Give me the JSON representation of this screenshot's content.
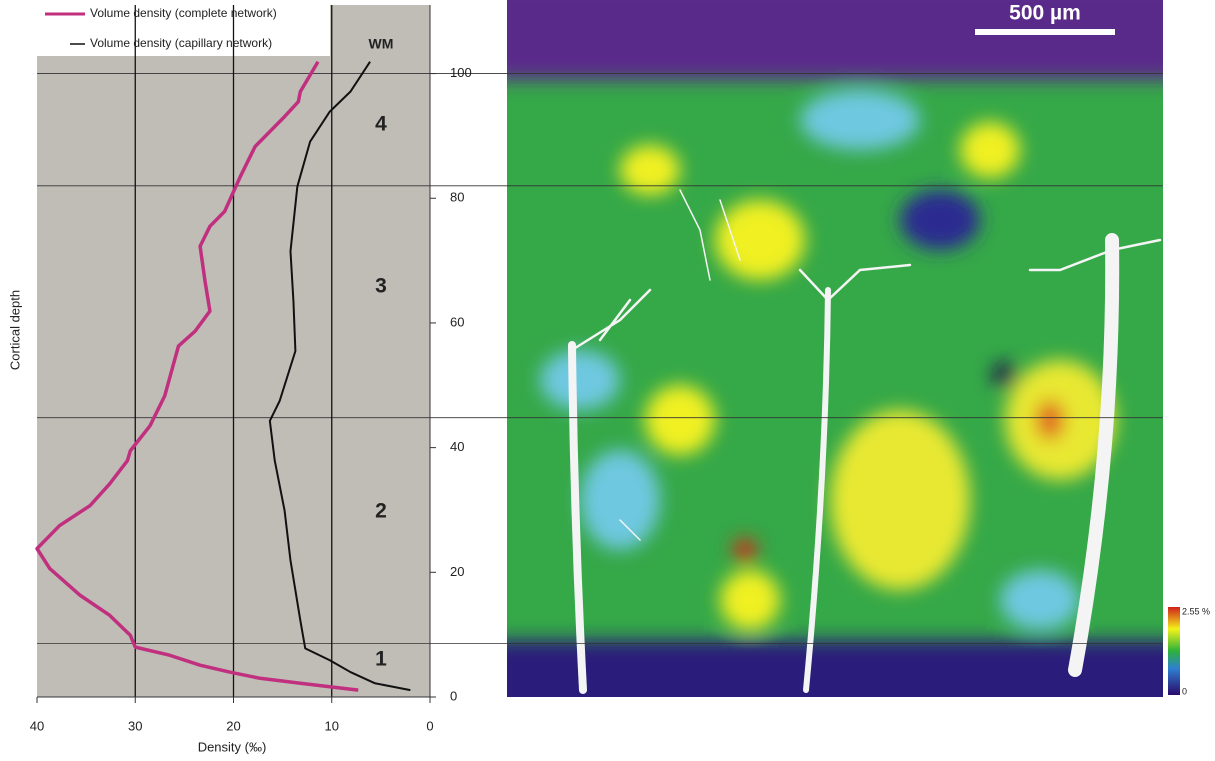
{
  "chart_data": {
    "type": "line",
    "x_label": "Density (‰)",
    "y_label": "Cortical depth",
    "xlim": [
      40,
      0
    ],
    "xticks": [
      40,
      30,
      20,
      10,
      0
    ],
    "ylim": [
      0,
      111
    ],
    "yticks": [
      0,
      20,
      40,
      60,
      80,
      100
    ],
    "grid": true,
    "legend": "top-left",
    "layer_boundaries": [
      100,
      82,
      44.8,
      8.6
    ],
    "layer_labels": [
      "WM",
      "4",
      "3",
      "2",
      "1"
    ],
    "series": [
      {
        "name": "Volume density (complete network)",
        "color": "#c0307f",
        "x": [
          7.3,
          13.2,
          17.3,
          20.4,
          23.4,
          26.5,
          30,
          30.5,
          32.6,
          35.6,
          38.7,
          40,
          37.7,
          34.6,
          32.6,
          30.8,
          30.5,
          28.5,
          27,
          26.3,
          25.6,
          23.9,
          22.4,
          22.9,
          23.4,
          22.4,
          20.9,
          19.3,
          17.8,
          14.8,
          13.4,
          13.2,
          11.4
        ],
        "values": [
          1.1,
          2.2,
          3.0,
          4,
          5.1,
          6.7,
          8,
          9.9,
          13.1,
          16.3,
          20.6,
          23.8,
          27.5,
          30.7,
          34.2,
          37.9,
          39.5,
          43.5,
          48.3,
          52.3,
          56.3,
          58.7,
          61.9,
          66.7,
          72.3,
          75.5,
          77.9,
          83.5,
          88.3,
          93.1,
          95.5,
          97.1,
          101.9
        ]
      },
      {
        "name": "Volume density (capillary network)",
        "color": "#111111",
        "x": [
          2,
          5.6,
          8.1,
          10.2,
          12.7,
          13.2,
          14.2,
          14.8,
          15.8,
          16.3,
          15.3,
          13.7,
          13.9,
          14.2,
          13.5,
          12.2,
          10.2,
          8.1,
          6.1
        ],
        "values": [
          1.1,
          2.2,
          4,
          5.9,
          7.8,
          12.3,
          21.9,
          29.9,
          37.9,
          44.3,
          47.5,
          55.5,
          63.5,
          71.5,
          81.9,
          89.1,
          93.9,
          97.1,
          101.9
        ]
      }
    ]
  },
  "image": {
    "scale_bar": "500 µm",
    "colorbar_max": "2.55 %",
    "colorbar_min": "0"
  }
}
